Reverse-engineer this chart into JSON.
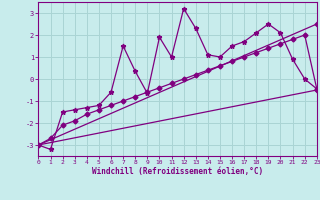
{
  "xlabel": "Windchill (Refroidissement éolien,°C)",
  "bg_color": "#c8ecec",
  "grid_color": "#aad4d4",
  "line_color": "#800080",
  "spine_color": "#800080",
  "xlim": [
    0,
    23
  ],
  "ylim": [
    -3.5,
    3.5
  ],
  "xticks": [
    0,
    1,
    2,
    3,
    4,
    5,
    6,
    7,
    8,
    9,
    10,
    11,
    12,
    13,
    14,
    15,
    16,
    17,
    18,
    19,
    20,
    21,
    22,
    23
  ],
  "yticks": [
    -3,
    -2,
    -1,
    0,
    1,
    2,
    3
  ],
  "series1_x": [
    0,
    1,
    2,
    3,
    4,
    5,
    6,
    7,
    8,
    9,
    10,
    11,
    12,
    13,
    14,
    15,
    16,
    17,
    18,
    19,
    20,
    21,
    22,
    23
  ],
  "series1_y": [
    -3.0,
    -3.2,
    -1.5,
    -1.4,
    -1.3,
    -1.2,
    -0.6,
    1.5,
    0.35,
    -0.65,
    1.9,
    1.0,
    3.2,
    2.3,
    1.1,
    1.0,
    1.5,
    1.7,
    2.1,
    2.5,
    2.1,
    0.9,
    0.0,
    -0.45
  ],
  "series2_x": [
    0,
    23
  ],
  "series2_y": [
    -3.0,
    -0.5
  ],
  "series3_x": [
    0,
    23
  ],
  "series3_y": [
    -3.0,
    2.5
  ],
  "series4_x": [
    0,
    1,
    2,
    3,
    4,
    5,
    6,
    7,
    8,
    9,
    10,
    11,
    12,
    13,
    14,
    15,
    16,
    17,
    18,
    19,
    20,
    21,
    22,
    23
  ],
  "series4_y": [
    -3.0,
    -2.7,
    -2.1,
    -1.9,
    -1.6,
    -1.4,
    -1.2,
    -1.0,
    -0.8,
    -0.6,
    -0.4,
    -0.2,
    0.0,
    0.2,
    0.4,
    0.6,
    0.8,
    1.0,
    1.2,
    1.4,
    1.6,
    1.8,
    2.0,
    -0.45
  ]
}
